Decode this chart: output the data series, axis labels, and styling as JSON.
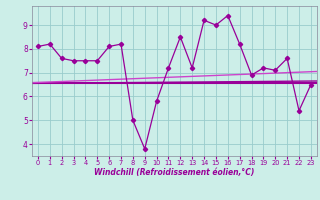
{
  "x": [
    0,
    1,
    2,
    3,
    4,
    5,
    6,
    7,
    8,
    9,
    10,
    11,
    12,
    13,
    14,
    15,
    16,
    17,
    18,
    19,
    20,
    21,
    22,
    23
  ],
  "y_main": [
    8.1,
    8.2,
    7.6,
    7.5,
    7.5,
    7.5,
    8.1,
    8.2,
    5.0,
    3.8,
    5.8,
    7.2,
    8.5,
    7.2,
    9.2,
    9.0,
    9.4,
    8.2,
    6.9,
    7.2,
    7.1,
    7.6,
    5.4,
    6.5
  ],
  "bg_color": "#cceee8",
  "line_color": "#990099",
  "grid_color": "#99cccc",
  "tick_color": "#990099",
  "xlabel": "Windchill (Refroidissement éolien,°C)",
  "ylim": [
    3.5,
    9.8
  ],
  "xlim": [
    -0.5,
    23.5
  ],
  "yticks": [
    4,
    5,
    6,
    7,
    8,
    9
  ],
  "xticks": [
    0,
    1,
    2,
    3,
    4,
    5,
    6,
    7,
    8,
    9,
    10,
    11,
    12,
    13,
    14,
    15,
    16,
    17,
    18,
    19,
    20,
    21,
    22,
    23
  ],
  "hline_y": 6.55,
  "trend1_y0": 6.55,
  "trend1_y1": 6.65,
  "trend2_y0": 6.58,
  "trend2_y1": 7.05
}
